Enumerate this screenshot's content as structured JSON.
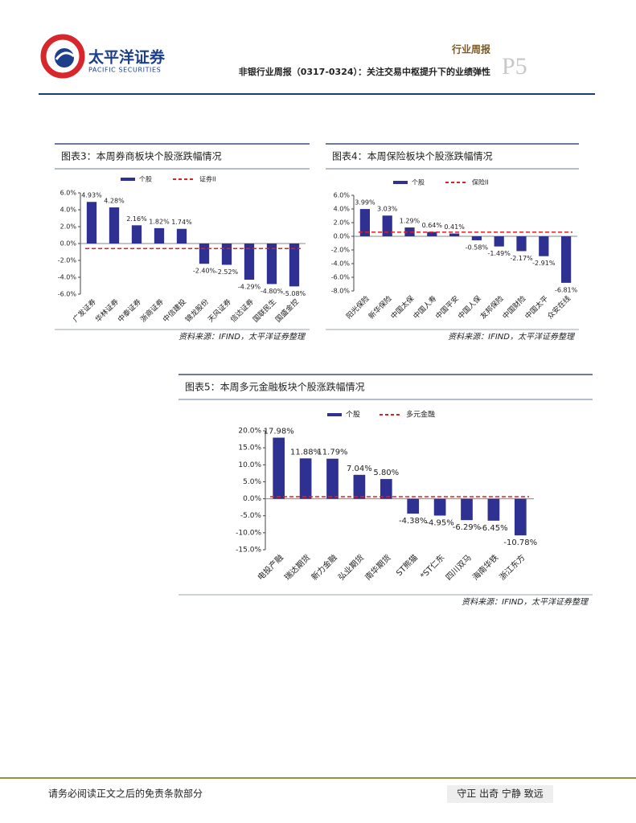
{
  "header": {
    "company": "太平洋证券",
    "company_en": "PACIFIC SECURITIES",
    "report_type": "行业周报",
    "title": "非银行业周报（0317-0324）：关注交易中枢提升下的业绩弹性",
    "page": "P5"
  },
  "chart_data": [
    {
      "type": "bar",
      "title": "图表3：本周券商板块个股涨跌幅情况",
      "categories": [
        "广发证券",
        "华林证券",
        "中泰证券",
        "浙商证券",
        "中信建投",
        "锦龙股份",
        "天风证券",
        "信达证券",
        "国联民生",
        "国盛金控"
      ],
      "series": [
        {
          "name": "个股",
          "color": "#2e3192",
          "values": [
            4.93,
            4.28,
            2.16,
            1.82,
            1.74,
            -2.4,
            -2.52,
            -4.29,
            -4.8,
            -5.08
          ],
          "value_labels": [
            "4.93%",
            "4.28%",
            "2.16%",
            "1.82%",
            "1.74%",
            "-2.40%",
            "-2.52%",
            "-4.29%",
            "-4.80%",
            "-5.08%"
          ]
        }
      ],
      "benchmark": {
        "name": "证券II",
        "color": "#e02020",
        "value": -0.6
      },
      "ylim": [
        -6,
        6
      ],
      "yticks": [
        {
          "value": -6,
          "label": "-6.0%"
        },
        {
          "value": -4,
          "label": "-4.0%"
        },
        {
          "value": -2,
          "label": "-2.0%"
        },
        {
          "value": 0,
          "label": "0.0%"
        },
        {
          "value": 2,
          "label": "2.0%"
        },
        {
          "value": 4,
          "label": "4.0%"
        },
        {
          "value": 6,
          "label": "6.0%"
        }
      ],
      "source": "资料来源：IFIND，太平洋证券整理"
    },
    {
      "type": "bar",
      "title": "图表4：本周保险板块个股涨跌幅情况",
      "categories": [
        "阳光保险",
        "新华保险",
        "中国太保",
        "中国人寿",
        "中国平安",
        "中国人保",
        "友邦保险",
        "中国财险",
        "中国太平",
        "众安在线"
      ],
      "series": [
        {
          "name": "个股",
          "color": "#2e3192",
          "values": [
            3.99,
            3.03,
            1.29,
            0.64,
            0.41,
            -0.58,
            -1.49,
            -2.17,
            -2.91,
            -6.81
          ],
          "value_labels": [
            "3.99%",
            "3.03%",
            "1.29%",
            "0.64%",
            "0.41%",
            "-0.58%",
            "-1.49%",
            "-2.17%",
            "-2.91%",
            "-6.81%"
          ]
        }
      ],
      "benchmark": {
        "name": "保险II",
        "color": "#e02020",
        "value": 0.6
      },
      "ylim": [
        -8,
        6
      ],
      "yticks": [
        {
          "value": -8,
          "label": "-8.0%"
        },
        {
          "value": -6,
          "label": "-6.0%"
        },
        {
          "value": -4,
          "label": "-4.0%"
        },
        {
          "value": -2,
          "label": "-2.0%"
        },
        {
          "value": 0,
          "label": "0.0%"
        },
        {
          "value": 2,
          "label": "2.0%"
        },
        {
          "value": 4,
          "label": "4.0%"
        },
        {
          "value": 6,
          "label": "6.0%"
        }
      ],
      "source": "资料来源：IFIND，太平洋证券整理"
    },
    {
      "type": "bar",
      "title": "图表5：本周多元金融板块个股涨跌幅情况",
      "categories": [
        "电投产融",
        "瑞达期货",
        "新力金融",
        "弘业期货",
        "南华期货",
        "ST熊猫",
        "*ST仁东",
        "四川双马",
        "海南华铁",
        "浙江东方"
      ],
      "series": [
        {
          "name": "个股",
          "color": "#2e3192",
          "values": [
            17.98,
            11.88,
            11.79,
            7.04,
            5.8,
            -4.38,
            -4.95,
            -6.29,
            -6.45,
            -10.78
          ],
          "value_labels": [
            "17.98%",
            "11.88%",
            "11.79%",
            "7.04%",
            "5.80%",
            "-4.38%",
            "-4.95%",
            "-6.29%",
            "-6.45%",
            "-10.78%"
          ]
        }
      ],
      "benchmark": {
        "name": "多元金融",
        "color": "#e02020",
        "value": 0.6
      },
      "ylim": [
        -15,
        20
      ],
      "yticks": [
        {
          "value": -15,
          "label": "-15.0%"
        },
        {
          "value": -10,
          "label": "-10.0%"
        },
        {
          "value": -5,
          "label": "-5.0%"
        },
        {
          "value": 0,
          "label": "0.0%"
        },
        {
          "value": 5,
          "label": "5.0%"
        },
        {
          "value": 10,
          "label": "10.0%"
        },
        {
          "value": 15,
          "label": "15.0%"
        },
        {
          "value": 20,
          "label": "20.0%"
        }
      ],
      "source": "资料来源：IFIND，太平洋证券整理"
    }
  ],
  "footer": {
    "disclaimer": "请务必阅读正文之后的免责条款部分",
    "motto": "守正 出奇 宁静 致远"
  }
}
